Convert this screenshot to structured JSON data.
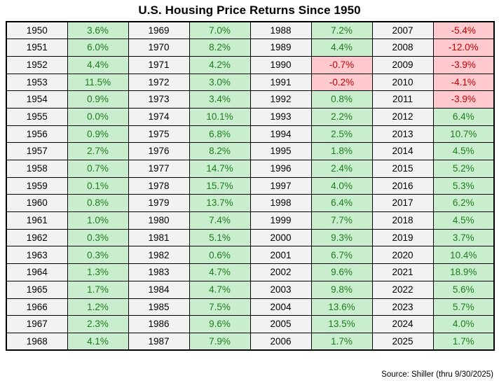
{
  "title": "U.S. Housing Price Returns Since 1950",
  "source_note": "Source: Shiller (thru 9/30/2025)",
  "colors": {
    "positive_bg": "#c9eecd",
    "positive_text": "#1e7b1e",
    "negative_bg": "#ffc9ce",
    "negative_text": "#c00000",
    "year_bg": "#f2f2f2",
    "border": "#000000"
  },
  "chart_data": {
    "type": "table",
    "title": "U.S. Housing Price Returns Since 1950",
    "source": "Source: Shiller (thru 9/30/2025)",
    "value_format": "percent_one_decimal",
    "rows_per_group": 19,
    "column_groups": [
      {
        "years": [
          1950,
          1951,
          1952,
          1953,
          1954,
          1955,
          1956,
          1957,
          1958,
          1959,
          1960,
          1961,
          1962,
          1963,
          1964,
          1965,
          1966,
          1967,
          1968
        ],
        "returns_pct": [
          3.6,
          6.0,
          4.4,
          11.5,
          0.9,
          0.0,
          0.9,
          2.7,
          0.7,
          0.1,
          0.8,
          1.0,
          0.3,
          0.3,
          1.3,
          1.7,
          1.2,
          2.3,
          4.1
        ]
      },
      {
        "years": [
          1969,
          1970,
          1971,
          1972,
          1973,
          1974,
          1975,
          1976,
          1977,
          1978,
          1979,
          1980,
          1981,
          1982,
          1983,
          1984,
          1985,
          1986,
          1987
        ],
        "returns_pct": [
          7.0,
          8.2,
          4.2,
          3.0,
          3.4,
          10.1,
          6.8,
          8.2,
          14.7,
          15.7,
          13.7,
          7.4,
          5.1,
          0.6,
          4.7,
          4.7,
          7.5,
          9.6,
          7.9
        ]
      },
      {
        "years": [
          1988,
          1989,
          1990,
          1991,
          1992,
          1993,
          1994,
          1995,
          1996,
          1997,
          1998,
          1999,
          2000,
          2001,
          2002,
          2003,
          2004,
          2005,
          2006
        ],
        "returns_pct": [
          7.2,
          4.4,
          -0.7,
          -0.2,
          0.8,
          2.2,
          2.5,
          1.8,
          2.4,
          4.0,
          6.4,
          7.7,
          9.3,
          6.7,
          9.6,
          9.8,
          13.6,
          13.5,
          1.7
        ]
      },
      {
        "years": [
          2007,
          2008,
          2009,
          2010,
          2011,
          2012,
          2013,
          2014,
          2015,
          2016,
          2017,
          2018,
          2019,
          2020,
          2021,
          2022,
          2023,
          2024,
          2025
        ],
        "returns_pct": [
          -5.4,
          -12.0,
          -3.9,
          -4.1,
          -3.9,
          6.4,
          10.7,
          4.5,
          5.2,
          5.3,
          6.2,
          4.5,
          3.7,
          10.4,
          18.9,
          5.6,
          5.7,
          4.0,
          1.7
        ]
      }
    ]
  }
}
